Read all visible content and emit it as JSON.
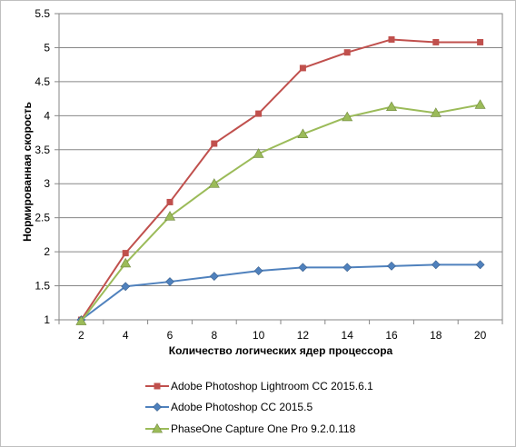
{
  "chart_data": {
    "type": "line",
    "xlabel": "Количество  логических ядер процессора",
    "ylabel": "Нормированная  скорость",
    "x": [
      2,
      4,
      6,
      8,
      10,
      12,
      14,
      16,
      18,
      20
    ],
    "ylim": [
      1,
      5.5
    ],
    "yticks": [
      "1",
      "1.5",
      "2",
      "2.5",
      "3",
      "3.5",
      "4",
      "4.5",
      "5",
      "5.5"
    ],
    "grid": "horizontal",
    "legend_position": "bottom",
    "series": [
      {
        "name": "Adobe Photoshop Lightroom CC 2015.6.1",
        "values": [
          1.0,
          1.98,
          2.73,
          3.59,
          4.03,
          4.7,
          4.93,
          5.12,
          5.08,
          5.08
        ],
        "color": "#c0504d",
        "marker": "square"
      },
      {
        "name": "Adobe Photoshop CC 2015.5",
        "values": [
          1.0,
          1.49,
          1.56,
          1.64,
          1.72,
          1.77,
          1.77,
          1.79,
          1.81,
          1.81
        ],
        "color": "#4f81bd",
        "marker": "diamond"
      },
      {
        "name": "PhaseOne Capture One Pro 9.2.0.118",
        "values": [
          0.98,
          1.83,
          2.52,
          3.0,
          3.44,
          3.73,
          3.98,
          4.13,
          4.04,
          4.16
        ],
        "color": "#9bbb59",
        "marker": "triangle"
      }
    ]
  }
}
